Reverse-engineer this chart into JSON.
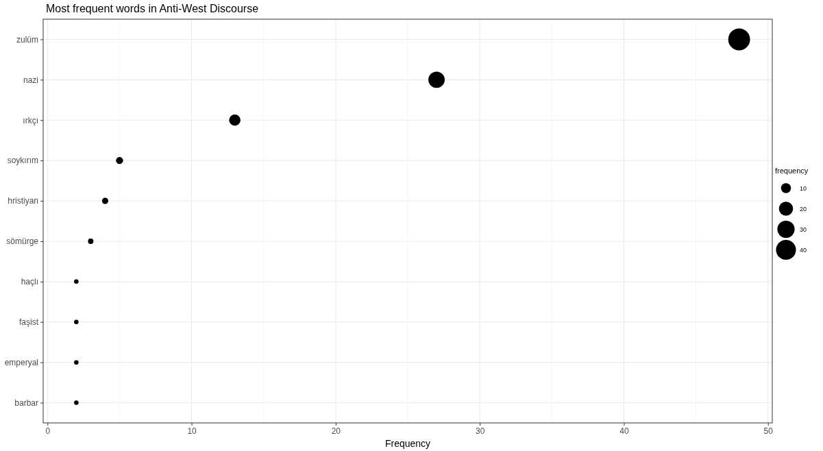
{
  "chart_data": {
    "type": "bubble",
    "title": "Most frequent words in Anti-West Discourse",
    "xlabel": "Frequency",
    "orientation": "horizontal",
    "categories": [
      "zulüm",
      "nazi",
      "ırkçı",
      "soykırım",
      "hristiyan",
      "sömürge",
      "haçlı",
      "faşist",
      "emperyal",
      "barbar"
    ],
    "values": [
      48,
      27,
      13,
      5,
      4,
      3,
      2,
      2,
      2,
      2
    ],
    "sizes": [
      48,
      27,
      13,
      5,
      4,
      3,
      2,
      2,
      2,
      2
    ],
    "size_legend": [
      10,
      20,
      30,
      40
    ],
    "legend_title": "frequency",
    "color": "#000000",
    "xlim": [
      -0.3,
      50.3
    ],
    "xticks": [
      0,
      10,
      20,
      30,
      40,
      50
    ],
    "grid": true
  }
}
